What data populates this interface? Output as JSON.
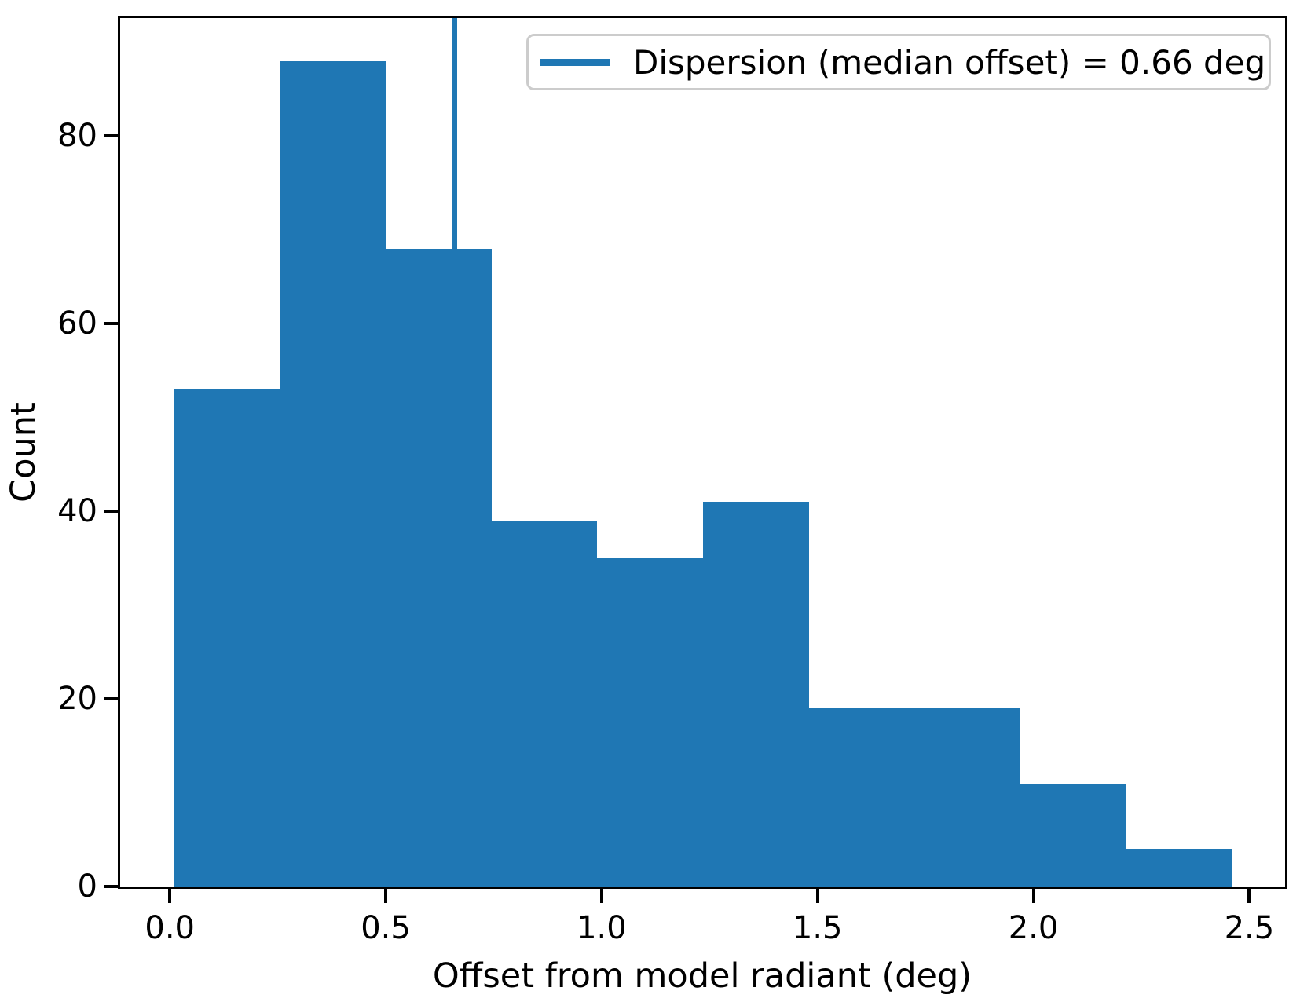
{
  "figure": {
    "background_color": "#ffffff",
    "axis_color": "#000000",
    "bar_color": "#1f77b4",
    "median_line_color": "#1f77b4",
    "legend_border_color": "#cccccc"
  },
  "chart_data": {
    "type": "bar",
    "subtype": "histogram",
    "title": "",
    "xlabel": "Offset from model radiant (deg)",
    "ylabel": "Count",
    "bin_edges": [
      0.011,
      0.256,
      0.501,
      0.745,
      0.99,
      1.235,
      1.48,
      1.725,
      1.969,
      2.214,
      2.459
    ],
    "counts": [
      53,
      88,
      68,
      39,
      35,
      41,
      19,
      19,
      11,
      4
    ],
    "median_offset_deg": 0.66,
    "vline_x": 0.66,
    "xticks": [
      0.0,
      0.5,
      1.0,
      1.5,
      2.0,
      2.5
    ],
    "xtick_labels": [
      "0.0",
      "0.5",
      "1.0",
      "1.5",
      "2.0",
      "2.5"
    ],
    "yticks": [
      0,
      20,
      40,
      60,
      80
    ],
    "ytick_labels": [
      "0",
      "20",
      "40",
      "60",
      "80"
    ],
    "xlim": [
      -0.115,
      2.583
    ],
    "ylim": [
      0,
      92.6
    ],
    "grid": false,
    "legend": {
      "position": "upper right",
      "entries": [
        "Dispersion (median offset) = 0.66 deg"
      ]
    }
  }
}
